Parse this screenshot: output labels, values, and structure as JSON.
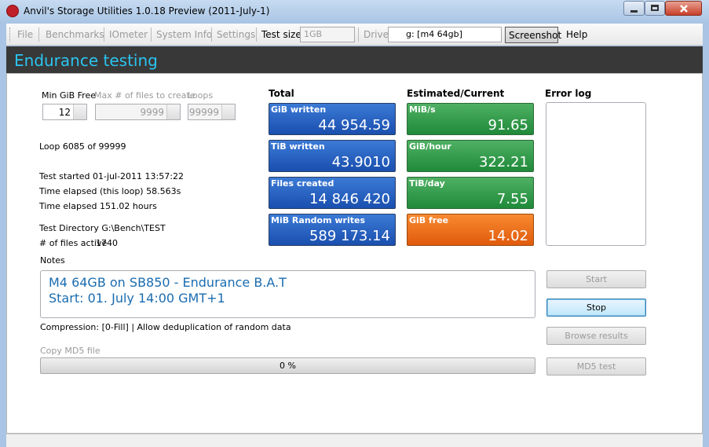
{
  "window": {
    "title": "Anvil's Storage Utilities 1.0.18 Preview (2011-July-1)"
  },
  "menu": {
    "items": [
      "File",
      "Benchmarks",
      "IOmeter",
      "System Info",
      "Settings"
    ],
    "test_size_label": "Test size",
    "test_size": "1GB",
    "drive_label": "Drive",
    "drive": "g: [m4 64gb]",
    "screenshot": "Screenshot",
    "help": "Help"
  },
  "header": {
    "title": "Endurance testing"
  },
  "settings": [
    {
      "label": "Min GiB Free",
      "value": 12
    },
    {
      "label": "Max # of files to create",
      "value": 9999
    },
    {
      "label": "Loops",
      "value": 99999
    }
  ],
  "status": [
    "Loop 6085 of 99999",
    "Test started 01-jul-2011 13:57:22",
    "Time elapsed (this loop) 58.563s",
    "Time elapsed 151.02 hours",
    "Test Directory G:\\Bench\\TEST"
  ],
  "files_active": {
    "label": "# of files active",
    "value": 1740
  },
  "notes": {
    "label": "Notes",
    "lines": [
      "M4 64GB on SB850 - Endurance B.A.T",
      "Start: 01. July 14:00 GMT+1"
    ]
  },
  "compression": "Compression: [0-Fill] | Allow deduplication of random data",
  "progress": {
    "label": "Copy MD5 file",
    "text": "0 %"
  },
  "total": {
    "heading": "Total",
    "tiles": [
      {
        "label": "GiB written",
        "value": "44 954.59"
      },
      {
        "label": "TiB written",
        "value": "43.9010"
      },
      {
        "label": "Files created",
        "value": "14 846 420"
      },
      {
        "label": "MiB Random writes",
        "value": "589 173.14"
      }
    ]
  },
  "estimated": {
    "heading": "Estimated/Current",
    "tiles": [
      {
        "label": "MiB/s",
        "value": "91.65"
      },
      {
        "label": "GiB/hour",
        "value": "322.21"
      },
      {
        "label": "TiB/day",
        "value": "7.55"
      },
      {
        "label": "GiB free",
        "value": "14.02"
      }
    ]
  },
  "error_log": {
    "heading": "Error log"
  },
  "buttons": [
    "Start",
    "Stop",
    "Browse results",
    "MD5 test"
  ]
}
